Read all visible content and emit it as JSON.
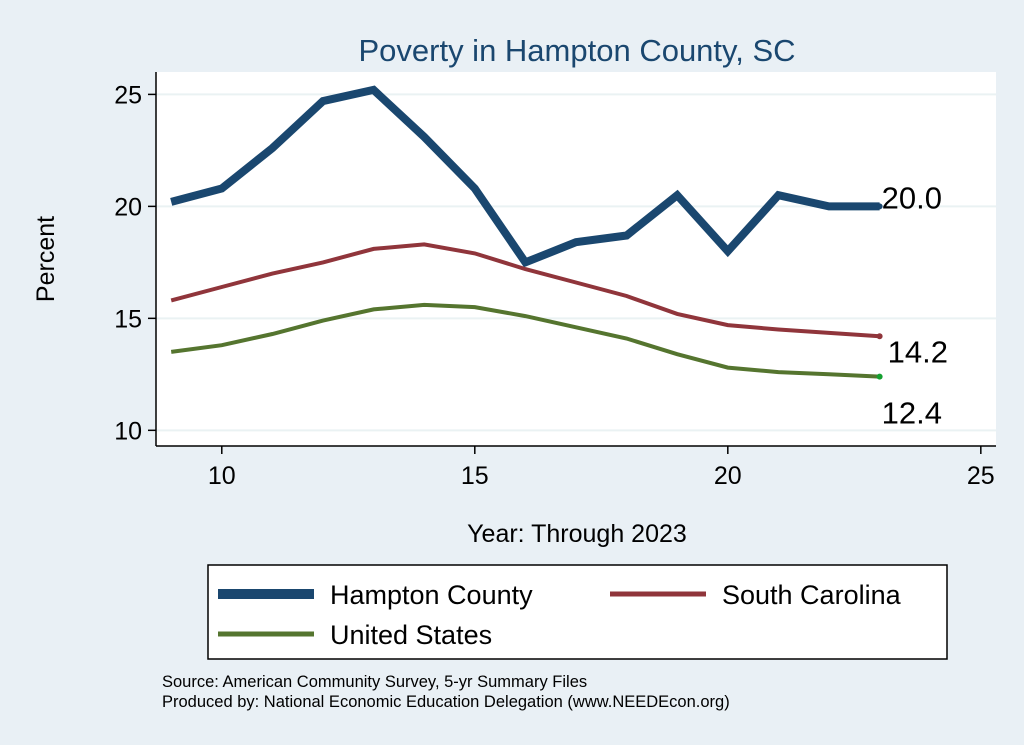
{
  "chart_data": {
    "type": "line",
    "title": "Poverty in Hampton County, SC",
    "xlabel": "Year: Through 2023",
    "ylabel": "Percent",
    "xlim": [
      8.7,
      25.3
    ],
    "ylim": [
      9.3,
      26.0
    ],
    "xticks": [
      10,
      15,
      20,
      25
    ],
    "yticks": [
      10,
      15,
      20,
      25
    ],
    "grid": true,
    "legend_position": "bottom",
    "series": [
      {
        "name": "Hampton County",
        "color": "#1a476f",
        "x": [
          9,
          10,
          11,
          12,
          13,
          14,
          15,
          16,
          17,
          18,
          19,
          20,
          21,
          22,
          23
        ],
        "values": [
          20.2,
          20.8,
          22.6,
          24.7,
          25.2,
          23.1,
          20.8,
          17.5,
          18.4,
          18.7,
          20.5,
          18.0,
          20.5,
          20.0,
          20.0
        ],
        "end_label": "20.0"
      },
      {
        "name": "South Carolina",
        "color": "#90353b",
        "x": [
          9,
          10,
          11,
          12,
          13,
          14,
          15,
          16,
          17,
          18,
          19,
          20,
          21,
          22,
          23
        ],
        "values": [
          15.8,
          16.4,
          17.0,
          17.5,
          18.1,
          18.3,
          17.9,
          17.2,
          16.6,
          16.0,
          15.2,
          14.7,
          14.5,
          14.35,
          14.2
        ],
        "end_label": "14.2"
      },
      {
        "name": "United States",
        "color": "#55752f",
        "x": [
          9,
          10,
          11,
          12,
          13,
          14,
          15,
          16,
          17,
          18,
          19,
          20,
          21,
          22,
          23
        ],
        "values": [
          13.5,
          13.8,
          14.3,
          14.9,
          15.4,
          15.6,
          15.5,
          15.1,
          14.6,
          14.1,
          13.4,
          12.8,
          12.6,
          12.5,
          12.4
        ],
        "end_label": "12.4"
      }
    ],
    "notes": [
      "Source: American Community Survey, 5-yr Summary Files",
      "Produced by: National Economic Education Delegation (www.NEEDEcon.org)"
    ]
  }
}
